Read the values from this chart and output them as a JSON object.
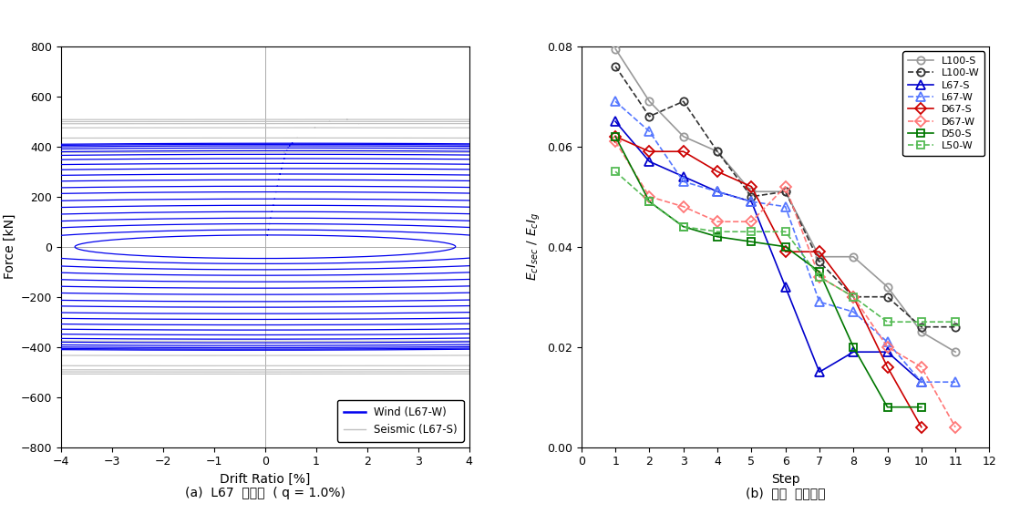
{
  "left_plot": {
    "xlabel": "Drift Ratio [%]",
    "ylabel": "Force [kN]",
    "xlim": [
      -4,
      4
    ],
    "ylim": [
      -800,
      800
    ],
    "xticks": [
      -4,
      -3,
      -2,
      -1,
      0,
      1,
      2,
      3,
      4
    ],
    "yticks": [
      -800,
      -600,
      -400,
      -200,
      0,
      200,
      400,
      600,
      800
    ],
    "caption": "(a)  L67  시리즈  ( q = 1.0%)",
    "seismic_loops": [
      {
        "amp_x": 0.65,
        "amp_y": 460,
        "skew": 0.72
      },
      {
        "amp_x": 1.1,
        "amp_y": 530,
        "skew": 0.6
      },
      {
        "amp_x": 1.7,
        "amp_y": 580,
        "skew": 0.52
      },
      {
        "amp_x": 2.2,
        "amp_y": 610,
        "skew": 0.45
      },
      {
        "amp_x": 2.8,
        "amp_y": 620,
        "skew": 0.38
      },
      {
        "amp_x": 3.2,
        "amp_y": 600,
        "skew": 0.32
      }
    ],
    "wind_bundles": [
      {
        "amp_x": 0.08,
        "amp_y": 55,
        "skew": 4.5
      },
      {
        "amp_x": 0.12,
        "amp_y": 80,
        "skew": 4.2
      },
      {
        "amp_x": 0.16,
        "amp_y": 108,
        "skew": 4.0
      },
      {
        "amp_x": 0.2,
        "amp_y": 135,
        "skew": 3.8
      },
      {
        "amp_x": 0.25,
        "amp_y": 165,
        "skew": 3.6
      },
      {
        "amp_x": 0.3,
        "amp_y": 195,
        "skew": 3.5
      },
      {
        "amp_x": 0.35,
        "amp_y": 225,
        "skew": 3.4
      },
      {
        "amp_x": 0.4,
        "amp_y": 258,
        "skew": 3.3
      },
      {
        "amp_x": 0.45,
        "amp_y": 285,
        "skew": 3.2
      },
      {
        "amp_x": 0.5,
        "amp_y": 315,
        "skew": 3.1
      },
      {
        "amp_x": 0.55,
        "amp_y": 342,
        "skew": 3.0
      },
      {
        "amp_x": 0.6,
        "amp_y": 368,
        "skew": 2.9
      },
      {
        "amp_x": 0.65,
        "amp_y": 392,
        "skew": 2.8
      },
      {
        "amp_x": 0.7,
        "amp_y": 415,
        "skew": 2.7
      },
      {
        "amp_x": 0.75,
        "amp_y": 435,
        "skew": 2.6
      },
      {
        "amp_x": 0.8,
        "amp_y": 452,
        "skew": 2.5
      },
      {
        "amp_x": 0.85,
        "amp_y": 465,
        "skew": 2.45
      },
      {
        "amp_x": 0.9,
        "amp_y": 475,
        "skew": 2.4
      },
      {
        "amp_x": 0.95,
        "amp_y": 482,
        "skew": 2.35
      },
      {
        "amp_x": 1.0,
        "amp_y": 487,
        "skew": 2.3
      }
    ]
  },
  "right_plot": {
    "xlabel": "Step",
    "xlim": [
      0,
      12
    ],
    "ylim": [
      0,
      0.08
    ],
    "xticks": [
      0,
      1,
      2,
      3,
      4,
      5,
      6,
      7,
      8,
      9,
      10,
      11,
      12
    ],
    "yticks": [
      0,
      0.02,
      0.04,
      0.06,
      0.08
    ],
    "caption": "(b)  평균  할선강성",
    "series": [
      {
        "key": "L100_S",
        "steps": [
          1,
          2,
          3,
          4,
          5,
          6,
          7,
          8,
          9,
          10,
          11
        ],
        "values": [
          0.0795,
          0.069,
          0.062,
          0.059,
          0.051,
          0.051,
          0.038,
          0.038,
          0.032,
          0.023,
          0.019
        ],
        "color": "#999999",
        "linestyle": "-",
        "marker": "o",
        "label": "L100-S",
        "markersize": 6
      },
      {
        "key": "L100_W",
        "steps": [
          1,
          2,
          3,
          4,
          5,
          6,
          7,
          8,
          9,
          10,
          11
        ],
        "values": [
          0.076,
          0.066,
          0.069,
          0.059,
          0.05,
          0.051,
          0.037,
          0.03,
          0.03,
          0.024,
          0.024
        ],
        "color": "#333333",
        "linestyle": "--",
        "marker": "o",
        "label": "L100-W",
        "markersize": 6
      },
      {
        "key": "L67_S",
        "steps": [
          1,
          2,
          3,
          4,
          5,
          6,
          7,
          8,
          9,
          10
        ],
        "values": [
          0.065,
          0.057,
          0.054,
          0.051,
          0.049,
          0.032,
          0.015,
          0.019,
          0.019,
          0.013
        ],
        "color": "#0000CC",
        "linestyle": "-",
        "marker": "^",
        "label": "L67-S",
        "markersize": 7
      },
      {
        "key": "L67_W",
        "steps": [
          1,
          2,
          3,
          4,
          5,
          6,
          7,
          8,
          9,
          10,
          11
        ],
        "values": [
          0.069,
          0.063,
          0.053,
          0.051,
          0.049,
          0.048,
          0.029,
          0.027,
          0.021,
          0.013,
          0.013
        ],
        "color": "#5577FF",
        "linestyle": "--",
        "marker": "^",
        "label": "L67-W",
        "markersize": 7
      },
      {
        "key": "D67_S",
        "steps": [
          1,
          2,
          3,
          4,
          5,
          6,
          7,
          8,
          9,
          10
        ],
        "values": [
          0.062,
          0.059,
          0.059,
          0.055,
          0.052,
          0.039,
          0.039,
          0.03,
          0.016,
          0.004
        ],
        "color": "#CC0000",
        "linestyle": "-",
        "marker": "D",
        "label": "D67-S",
        "markersize": 6
      },
      {
        "key": "D67_W",
        "steps": [
          1,
          2,
          3,
          4,
          5,
          6,
          7,
          8,
          9,
          10,
          11
        ],
        "values": [
          0.061,
          0.05,
          0.048,
          0.045,
          0.045,
          0.052,
          0.034,
          0.03,
          0.02,
          0.016,
          0.004
        ],
        "color": "#FF7777",
        "linestyle": "--",
        "marker": "D",
        "label": "D67-W",
        "markersize": 6
      },
      {
        "key": "D50_S",
        "steps": [
          1,
          2,
          3,
          4,
          5,
          6,
          7,
          8,
          9,
          10
        ],
        "values": [
          0.062,
          0.049,
          0.044,
          0.042,
          0.041,
          0.04,
          0.035,
          0.02,
          0.008,
          0.008
        ],
        "color": "#007700",
        "linestyle": "-",
        "marker": "s",
        "label": "D50-S",
        "markersize": 6
      },
      {
        "key": "L50_W",
        "steps": [
          1,
          2,
          3,
          4,
          5,
          6,
          7,
          8,
          9,
          10,
          11
        ],
        "values": [
          0.055,
          0.049,
          0.044,
          0.043,
          0.043,
          0.043,
          0.034,
          0.03,
          0.025,
          0.025,
          0.025
        ],
        "color": "#55BB55",
        "linestyle": "--",
        "marker": "s",
        "label": "L50-W",
        "markersize": 6
      }
    ]
  }
}
